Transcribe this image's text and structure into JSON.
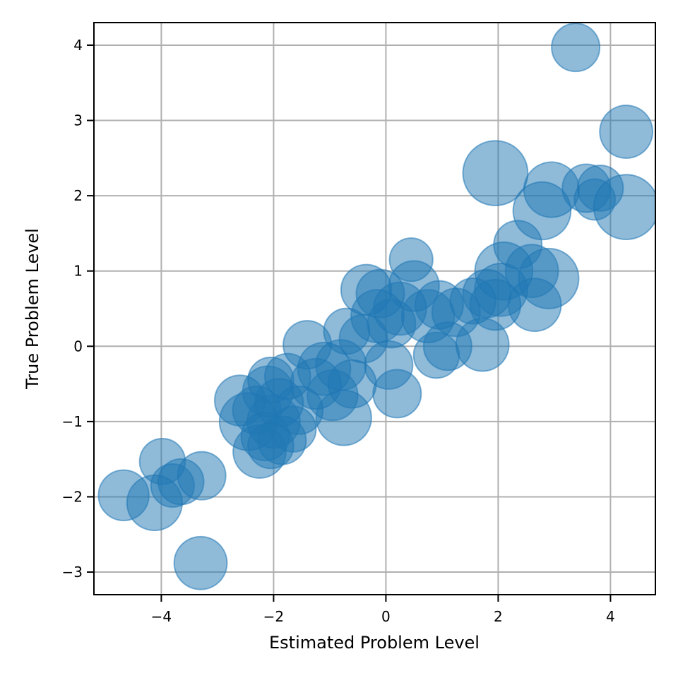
{
  "chart_data": {
    "type": "scatter",
    "title": "",
    "xlabel": "Estimated Problem Level",
    "ylabel": "True Problem Level",
    "xlim": [
      -5.2,
      4.8
    ],
    "ylim": [
      -3.3,
      4.3
    ],
    "xticks": [
      -4,
      -2,
      0,
      2,
      4
    ],
    "yticks": [
      -3,
      -2,
      -1,
      0,
      1,
      2,
      3,
      4
    ],
    "xtick_labels": [
      "−4",
      "−2",
      "0",
      "2",
      "4"
    ],
    "ytick_labels": [
      "−3",
      "−2",
      "−1",
      "0",
      "1",
      "2",
      "3",
      "4"
    ],
    "grid": true,
    "marker_color": "#1f77b4",
    "marker_alpha": 0.5,
    "points": [
      {
        "x": 3.38,
        "y": 3.97,
        "size": 1.0
      },
      {
        "x": 4.28,
        "y": 2.85,
        "size": 1.1
      },
      {
        "x": 1.95,
        "y": 2.3,
        "size": 1.35
      },
      {
        "x": 2.95,
        "y": 2.08,
        "size": 1.15
      },
      {
        "x": 2.78,
        "y": 1.8,
        "size": 1.2
      },
      {
        "x": 3.57,
        "y": 2.1,
        "size": 1.0
      },
      {
        "x": 3.82,
        "y": 2.1,
        "size": 0.95
      },
      {
        "x": 3.72,
        "y": 1.95,
        "size": 0.85
      },
      {
        "x": 4.28,
        "y": 1.85,
        "size": 1.35
      },
      {
        "x": 2.35,
        "y": 1.35,
        "size": 1.0
      },
      {
        "x": 2.6,
        "y": 1.0,
        "size": 1.1
      },
      {
        "x": 2.9,
        "y": 0.9,
        "size": 1.25
      },
      {
        "x": 2.65,
        "y": 0.55,
        "size": 1.1
      },
      {
        "x": 2.1,
        "y": 1.0,
        "size": 1.2
      },
      {
        "x": 2.05,
        "y": 0.75,
        "size": 1.1
      },
      {
        "x": 1.8,
        "y": 0.7,
        "size": 1.0
      },
      {
        "x": 1.95,
        "y": 0.55,
        "size": 1.05
      },
      {
        "x": 1.55,
        "y": 0.6,
        "size": 0.95
      },
      {
        "x": 1.25,
        "y": 0.45,
        "size": 1.0
      },
      {
        "x": 1.72,
        "y": 0.02,
        "size": 1.1
      },
      {
        "x": 0.9,
        "y": -0.12,
        "size": 0.95
      },
      {
        "x": 1.1,
        "y": 0.0,
        "size": 1.0
      },
      {
        "x": 0.75,
        "y": 0.4,
        "size": 1.1
      },
      {
        "x": 0.95,
        "y": 0.55,
        "size": 1.0
      },
      {
        "x": 0.5,
        "y": 0.8,
        "size": 1.05
      },
      {
        "x": 0.45,
        "y": 1.15,
        "size": 0.9
      },
      {
        "x": 0.25,
        "y": 0.5,
        "size": 1.1
      },
      {
        "x": 0.1,
        "y": 0.3,
        "size": 1.0
      },
      {
        "x": -0.1,
        "y": 0.7,
        "size": 1.0
      },
      {
        "x": -0.35,
        "y": 0.75,
        "size": 1.05
      },
      {
        "x": -0.15,
        "y": 0.4,
        "size": 1.1
      },
      {
        "x": 0.05,
        "y": -0.25,
        "size": 1.0
      },
      {
        "x": 0.2,
        "y": -0.63,
        "size": 1.0
      },
      {
        "x": -0.4,
        "y": 0.1,
        "size": 1.0
      },
      {
        "x": -0.7,
        "y": 0.2,
        "size": 0.95
      },
      {
        "x": -0.8,
        "y": -0.25,
        "size": 1.05
      },
      {
        "x": -0.6,
        "y": -0.5,
        "size": 1.0
      },
      {
        "x": -0.75,
        "y": -0.95,
        "size": 1.15
      },
      {
        "x": -0.95,
        "y": -0.65,
        "size": 1.05
      },
      {
        "x": -1.1,
        "y": -0.3,
        "size": 1.1
      },
      {
        "x": -1.4,
        "y": 0.02,
        "size": 1.0
      },
      {
        "x": -1.25,
        "y": -0.5,
        "size": 1.05
      },
      {
        "x": -1.55,
        "y": -0.85,
        "size": 1.0
      },
      {
        "x": -1.65,
        "y": -1.1,
        "size": 0.95
      },
      {
        "x": -1.85,
        "y": -1.25,
        "size": 1.0
      },
      {
        "x": -2.0,
        "y": -1.0,
        "size": 1.1
      },
      {
        "x": -2.1,
        "y": -0.6,
        "size": 1.05
      },
      {
        "x": -2.3,
        "y": -0.85,
        "size": 1.0
      },
      {
        "x": -2.25,
        "y": -1.4,
        "size": 1.1
      },
      {
        "x": -2.45,
        "y": -1.0,
        "size": 1.2
      },
      {
        "x": -2.6,
        "y": -0.72,
        "size": 1.05
      },
      {
        "x": -2.05,
        "y": -0.45,
        "size": 0.95
      },
      {
        "x": -1.9,
        "y": -0.75,
        "size": 1.0
      },
      {
        "x": -1.75,
        "y": -0.4,
        "size": 0.95
      },
      {
        "x": -2.15,
        "y": -1.2,
        "size": 1.0
      },
      {
        "x": -2.05,
        "y": -1.32,
        "size": 0.95
      },
      {
        "x": -3.98,
        "y": -1.53,
        "size": 0.95
      },
      {
        "x": -3.8,
        "y": -1.85,
        "size": 0.9
      },
      {
        "x": -3.65,
        "y": -1.8,
        "size": 0.95
      },
      {
        "x": -3.28,
        "y": -1.72,
        "size": 1.0
      },
      {
        "x": -4.67,
        "y": -1.98,
        "size": 1.05
      },
      {
        "x": -4.12,
        "y": -2.08,
        "size": 1.15
      },
      {
        "x": -3.3,
        "y": -2.88,
        "size": 1.1
      }
    ]
  }
}
